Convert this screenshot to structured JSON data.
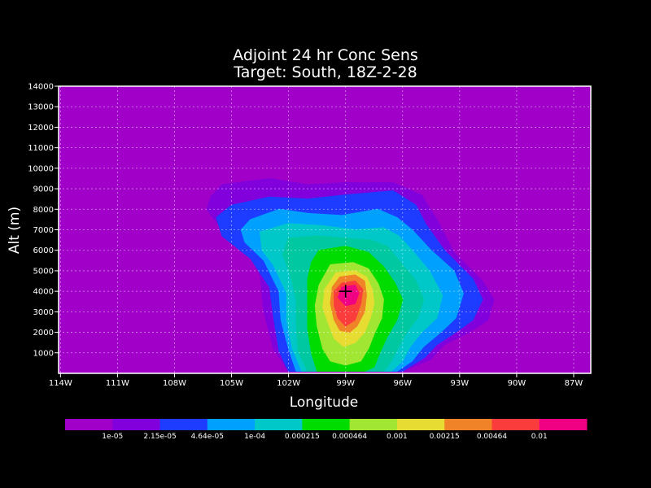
{
  "chart_data": {
    "type": "contour",
    "title_line1": "Adjoint 24 hr Conc Sens",
    "title_line2": "Target: South, 18Z-2-28",
    "xlabel": "Longitude",
    "ylabel": "Alt (m)",
    "x_ticks": [
      "114W",
      "111W",
      "108W",
      "105W",
      "102W",
      "99W",
      "96W",
      "93W",
      "90W",
      "87W"
    ],
    "x_tick_values": [
      -114,
      -111,
      -108,
      -105,
      -102,
      -99,
      -96,
      -93,
      -90,
      -87
    ],
    "xlim": [
      -114.1,
      -86.1
    ],
    "y_ticks": [
      "1000",
      "2000",
      "3000",
      "4000",
      "5000",
      "6000",
      "7000",
      "8000",
      "9000",
      "10000",
      "11000",
      "12000",
      "13000",
      "14000"
    ],
    "y_tick_values": [
      1000,
      2000,
      3000,
      4000,
      5000,
      6000,
      7000,
      8000,
      9000,
      10000,
      11000,
      12000,
      13000,
      14000
    ],
    "ylim": [
      0,
      14000
    ],
    "grid": true,
    "background_color": "#a000c8",
    "target_marker": {
      "lon": -99,
      "alt": 4000,
      "symbol": "+"
    },
    "levels": [
      "1e-05",
      "2.15e-05",
      "4.64e-05",
      "1e-04",
      "0.000215",
      "0.000464",
      "0.001",
      "0.00215",
      "0.00464",
      "0.01"
    ],
    "colors": [
      "#a000c8",
      "#8200dc",
      "#1e3cff",
      "#00a0ff",
      "#00c8c8",
      "#00dc00",
      "#a0e632",
      "#e6dc32",
      "#f08228",
      "#fa3c3c",
      "#f00082"
    ],
    "contour_fill_levels": [
      {
        "color": "#8200dc",
        "polygon": [
          [
            -105.5,
            9200
          ],
          [
            -103,
            9500
          ],
          [
            -101,
            9200
          ],
          [
            -99,
            9300
          ],
          [
            -96.5,
            9300
          ],
          [
            -95,
            8700
          ],
          [
            -94.2,
            7500
          ],
          [
            -93.3,
            5900
          ],
          [
            -91.8,
            4500
          ],
          [
            -91.2,
            3600
          ],
          [
            -91.5,
            2600
          ],
          [
            -92.5,
            2000
          ],
          [
            -93.8,
            1400
          ],
          [
            -94.5,
            700
          ],
          [
            -96,
            100
          ],
          [
            -102,
            100
          ],
          [
            -102.8,
            1200
          ],
          [
            -103.3,
            3000
          ],
          [
            -103.5,
            4800
          ],
          [
            -104.2,
            6000
          ],
          [
            -105.5,
            7000
          ],
          [
            -106.3,
            8000
          ],
          [
            -106.1,
            8600
          ]
        ]
      },
      {
        "color": "#1e3cff",
        "polygon": [
          [
            -105,
            8200
          ],
          [
            -103,
            8600
          ],
          [
            -101,
            8500
          ],
          [
            -99,
            8700
          ],
          [
            -96.5,
            8900
          ],
          [
            -95.3,
            8200
          ],
          [
            -94.8,
            7300
          ],
          [
            -93.8,
            6000
          ],
          [
            -92.3,
            4600
          ],
          [
            -91.8,
            3600
          ],
          [
            -92.3,
            2600
          ],
          [
            -93.2,
            2000
          ],
          [
            -94.2,
            1400
          ],
          [
            -94.8,
            800
          ],
          [
            -96,
            100
          ],
          [
            -102,
            100
          ],
          [
            -102.5,
            1100
          ],
          [
            -102.8,
            2800
          ],
          [
            -103,
            4200
          ],
          [
            -104,
            5600
          ],
          [
            -105.5,
            6700
          ],
          [
            -105.8,
            7600
          ]
        ]
      },
      {
        "color": "#00a0ff",
        "polygon": [
          [
            -104,
            7500
          ],
          [
            -102.5,
            8000
          ],
          [
            -101,
            7800
          ],
          [
            -99.2,
            7700
          ],
          [
            -97.3,
            8000
          ],
          [
            -96.3,
            7600
          ],
          [
            -95.5,
            7000
          ],
          [
            -94.5,
            6000
          ],
          [
            -93.3,
            5000
          ],
          [
            -92.8,
            3900
          ],
          [
            -93.2,
            2700
          ],
          [
            -94,
            2000
          ],
          [
            -94.9,
            1300
          ],
          [
            -95.5,
            600
          ],
          [
            -96.3,
            100
          ],
          [
            -101.6,
            100
          ],
          [
            -102,
            1200
          ],
          [
            -102.4,
            2600
          ],
          [
            -102.5,
            4000
          ],
          [
            -103.3,
            5500
          ],
          [
            -104.3,
            6400
          ],
          [
            -104.5,
            7000
          ]
        ]
      },
      {
        "color": "#00c8c8",
        "polygon": [
          [
            -103.5,
            6900
          ],
          [
            -102,
            7300
          ],
          [
            -100.2,
            7200
          ],
          [
            -98.5,
            7000
          ],
          [
            -97,
            7100
          ],
          [
            -96.2,
            6700
          ],
          [
            -95.5,
            6000
          ],
          [
            -94.6,
            5000
          ],
          [
            -93.9,
            3800
          ],
          [
            -94.2,
            2700
          ],
          [
            -95,
            2000
          ],
          [
            -95.6,
            1300
          ],
          [
            -96,
            600
          ],
          [
            -96.6,
            100
          ],
          [
            -101.3,
            100
          ],
          [
            -101.8,
            1200
          ],
          [
            -102.1,
            2600
          ],
          [
            -102.1,
            3900
          ],
          [
            -102.8,
            5300
          ],
          [
            -103.4,
            6000
          ]
        ]
      },
      {
        "color": "#00c8a0",
        "polygon": [
          [
            -102,
            6600
          ],
          [
            -100.5,
            6700
          ],
          [
            -99,
            6600
          ],
          [
            -97.7,
            6500
          ],
          [
            -96.8,
            6200
          ],
          [
            -96.1,
            5400
          ],
          [
            -95.3,
            4500
          ],
          [
            -94.9,
            3600
          ],
          [
            -95.2,
            2700
          ],
          [
            -95.8,
            2000
          ],
          [
            -96.2,
            1300
          ],
          [
            -96.6,
            600
          ],
          [
            -97,
            100
          ],
          [
            -101,
            100
          ],
          [
            -101.5,
            1100
          ],
          [
            -101.6,
            2400
          ],
          [
            -101.6,
            3600
          ],
          [
            -101.9,
            4800
          ],
          [
            -102.3,
            5800
          ]
        ]
      },
      {
        "color": "#00dc00",
        "polygon": [
          [
            -100.4,
            6000
          ],
          [
            -99,
            6200
          ],
          [
            -97.8,
            5900
          ],
          [
            -97,
            5200
          ],
          [
            -96.4,
            4400
          ],
          [
            -96,
            3600
          ],
          [
            -96.3,
            2600
          ],
          [
            -96.8,
            1800
          ],
          [
            -97.2,
            1000
          ],
          [
            -97.5,
            300
          ],
          [
            -98,
            100
          ],
          [
            -100.5,
            100
          ],
          [
            -100.8,
            1000
          ],
          [
            -101,
            2200
          ],
          [
            -101,
            3400
          ],
          [
            -101,
            4600
          ],
          [
            -100.8,
            5400
          ]
        ]
      },
      {
        "color": "#a0e632",
        "polygon": [
          [
            -99.8,
            5300
          ],
          [
            -98.6,
            5400
          ],
          [
            -97.8,
            5100
          ],
          [
            -97.3,
            4400
          ],
          [
            -97,
            3600
          ],
          [
            -97.1,
            2700
          ],
          [
            -97.5,
            1900
          ],
          [
            -97.8,
            1200
          ],
          [
            -98.2,
            600
          ],
          [
            -99,
            400
          ],
          [
            -99.8,
            600
          ],
          [
            -100.2,
            1200
          ],
          [
            -100.5,
            2300
          ],
          [
            -100.6,
            3300
          ],
          [
            -100.4,
            4300
          ]
        ]
      },
      {
        "color": "#e6dc32",
        "polygon": [
          [
            -99.5,
            4900
          ],
          [
            -98.5,
            5000
          ],
          [
            -97.9,
            4700
          ],
          [
            -97.6,
            4100
          ],
          [
            -97.5,
            3400
          ],
          [
            -97.7,
            2700
          ],
          [
            -98,
            2000
          ],
          [
            -98.5,
            1500
          ],
          [
            -99.1,
            1300
          ],
          [
            -99.6,
            1700
          ],
          [
            -99.9,
            2400
          ],
          [
            -100.2,
            3200
          ],
          [
            -100.1,
            4100
          ]
        ]
      },
      {
        "color": "#f08228",
        "polygon": [
          [
            -99.3,
            4700
          ],
          [
            -98.5,
            4800
          ],
          [
            -98,
            4500
          ],
          [
            -97.9,
            3800
          ],
          [
            -98,
            3000
          ],
          [
            -98.4,
            2300
          ],
          [
            -98.8,
            2000
          ],
          [
            -99.3,
            2100
          ],
          [
            -99.6,
            2600
          ],
          [
            -99.8,
            3400
          ],
          [
            -99.7,
            4200
          ]
        ]
      },
      {
        "color": "#fa3c3c",
        "polygon": [
          [
            -99.2,
            4400
          ],
          [
            -98.5,
            4500
          ],
          [
            -98.1,
            4100
          ],
          [
            -98.2,
            3400
          ],
          [
            -98.5,
            2600
          ],
          [
            -99,
            2300
          ],
          [
            -99.4,
            2700
          ],
          [
            -99.6,
            3300
          ],
          [
            -99.6,
            4000
          ]
        ]
      },
      {
        "color": "#f00082",
        "polygon": [
          [
            -99.2,
            4200
          ],
          [
            -98.5,
            4300
          ],
          [
            -98.3,
            3900
          ],
          [
            -98.5,
            3400
          ],
          [
            -99,
            3300
          ],
          [
            -99.4,
            3700
          ]
        ]
      }
    ]
  }
}
